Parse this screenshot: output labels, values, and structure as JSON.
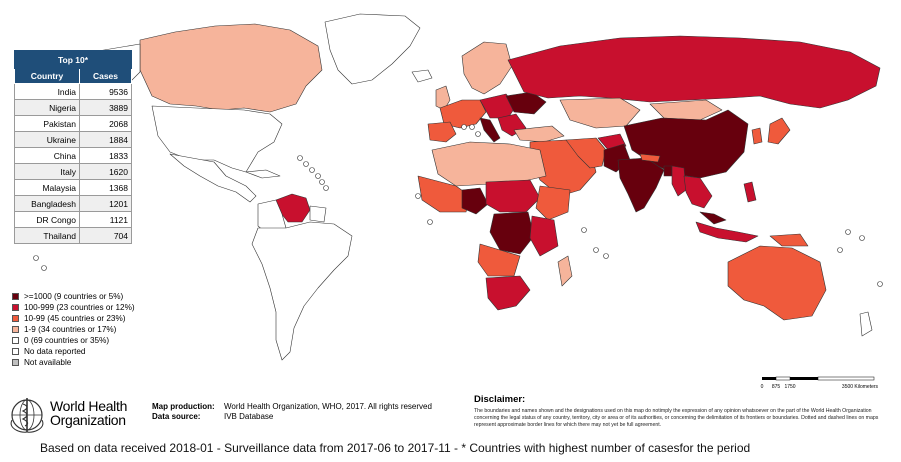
{
  "top10": {
    "title": "Top 10*",
    "col_country": "Country",
    "col_cases": "Cases",
    "rows": [
      {
        "country": "India",
        "cases": "9536"
      },
      {
        "country": "Nigeria",
        "cases": "3889"
      },
      {
        "country": "Pakistan",
        "cases": "2068"
      },
      {
        "country": "Ukraine",
        "cases": "1884"
      },
      {
        "country": "China",
        "cases": "1833"
      },
      {
        "country": "Italy",
        "cases": "1620"
      },
      {
        "country": "Malaysia",
        "cases": "1368"
      },
      {
        "country": "Bangladesh",
        "cases": "1201"
      },
      {
        "country": "DR Congo",
        "cases": "1121"
      },
      {
        "country": "Thailand",
        "cases": "704"
      }
    ]
  },
  "legend": [
    {
      "label": ">=1000 (9 countries or 5%)",
      "color": "#67000d"
    },
    {
      "label": "100-999 (23 countries or 12%)",
      "color": "#c8102e"
    },
    {
      "label": "10-99 (45 countries or 23%)",
      "color": "#ef5a3c"
    },
    {
      "label": "1-9 (34 countries or 17%)",
      "color": "#f6b49b"
    },
    {
      "label": "0 (69 countries or 35%)",
      "color": "#ffffff"
    },
    {
      "label": "No data reported",
      "color": "#ffffff"
    },
    {
      "label": "Not available",
      "color": "#c0c0c0"
    }
  ],
  "org": {
    "line1": "World Health",
    "line2": "Organization"
  },
  "production": {
    "map_label": "Map production:",
    "map_value": "World Health Organization, WHO, 2017. All rights reserved",
    "source_label": "Data source:",
    "source_value": "IVB Database"
  },
  "disclaimer": {
    "title": "Disclaimer:",
    "text": "The boundaries and names shown and the designations used on this map do notimply the expression of any opinion whatsoever on the part of the World Health Organization concerning the legal status of any country, territory, city or area or of its authorities, or concerning the delimitation of its frontiers or boundaries. Dotted and dashed lines on maps represent approximate border lines for which there may not yet be full agreement."
  },
  "scale": {
    "ticks": [
      "0",
      "875",
      "1750",
      "3500 Kilometers"
    ]
  },
  "footnote": "Based on data received 2018-01 - Surveillance data from 2017-06 to 2017-11 - * Countries with highest number of casesfor the period"
}
